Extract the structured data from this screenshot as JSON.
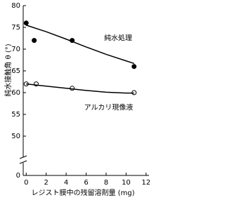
{
  "chart_data": {
    "type": "scatter",
    "ylabel": "純水接触角 θ (°)",
    "xlabel": "レジスト膜中の残留溶剤量 (mg)",
    "annotations": [
      {
        "text": "純水処理",
        "x": 7.8,
        "y": 72.5
      },
      {
        "text": "アルカリ現像液",
        "x": 5.8,
        "y": 56.5
      }
    ],
    "xlim": [
      -0.3,
      12.3
    ],
    "xticks": [
      0,
      2,
      4,
      6,
      8,
      10,
      12
    ],
    "ylim": [
      0,
      80
    ],
    "ybreak": [
      0,
      50
    ],
    "yticks": [
      0,
      50,
      55,
      60,
      65,
      70,
      75,
      80
    ],
    "color": "#000000",
    "series": [
      {
        "style": "filled",
        "x": [
          0,
          0.8,
          4.6,
          10.8
        ],
        "values": [
          76,
          72,
          72,
          66
        ]
      },
      {
        "style": "open",
        "x": [
          0,
          1,
          4.6,
          10.8
        ],
        "values": [
          62,
          62,
          61,
          60
        ]
      },
      {
        "style": "line",
        "x": [
          0,
          2,
          4,
          6,
          8,
          10,
          10.8
        ],
        "values": [
          75.5,
          74,
          72.3,
          70.5,
          68.8,
          67.3,
          66.7
        ]
      },
      {
        "style": "line",
        "x": [
          0,
          2,
          4,
          6,
          8,
          10,
          10.8
        ],
        "values": [
          62,
          61.5,
          61,
          60.5,
          60.1,
          59.9,
          59.9
        ]
      }
    ]
  }
}
